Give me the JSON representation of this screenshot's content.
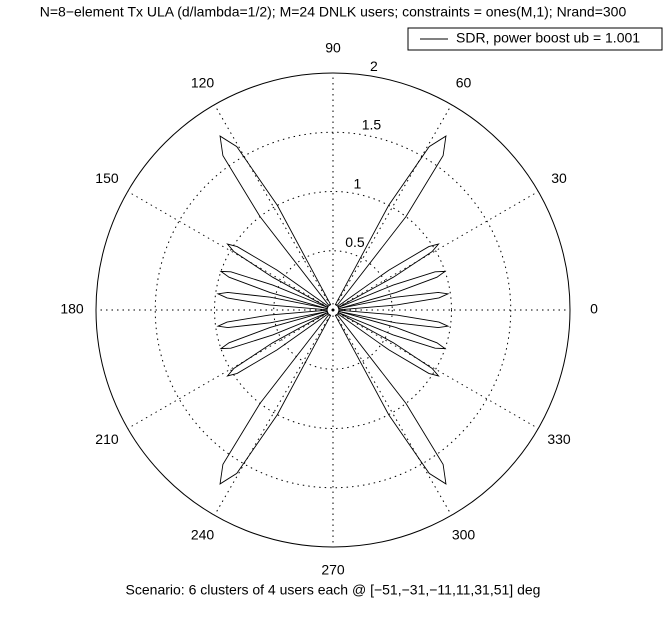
{
  "chart_data": {
    "type": "polar",
    "title": "N=8−element Tx ULA (d/lambda=1/2); M=24 DNLK users; constraints = ones(M,1); Nrand=300",
    "xlabel": "Scenario: 6 clusters of 4 users each @ [−51,−31,−11,11,31,51] deg",
    "rlim": [
      0,
      2
    ],
    "rticks": [
      0.5,
      1,
      1.5,
      2
    ],
    "thetaticks": [
      0,
      30,
      60,
      90,
      120,
      150,
      180,
      210,
      240,
      270,
      300,
      330
    ],
    "legend": "upper right",
    "series": [
      {
        "name": "SDR, power boost ub = 1.001",
        "color": "#000000",
        "theta": [
          2,
          4.5,
          6.5,
          8,
          9.5,
          11.5,
          14,
          null,
          13,
          15.5,
          17.5,
          19,
          20.5,
          22.5,
          25,
          null,
          26,
          28.5,
          30.5,
          32,
          33.5,
          35.5,
          38,
          null,
          48,
          52,
          54.5,
          57,
          59.5,
          62,
          66,
          null,
          114,
          118,
          120.5,
          123,
          125.5,
          128,
          132,
          null,
          142,
          144.5,
          146.5,
          148,
          149.5,
          151.5,
          154,
          null,
          155,
          157.5,
          159.5,
          161,
          162.5,
          164.5,
          167,
          null,
          166,
          168.5,
          170.5,
          172,
          173.5,
          175.5,
          178,
          null,
          182,
          184.5,
          186.5,
          188,
          189.5,
          191.5,
          194,
          null,
          193,
          195.5,
          197.5,
          199,
          200.5,
          202.5,
          205,
          null,
          206,
          208.5,
          210.5,
          212,
          213.5,
          215.5,
          218,
          null,
          228,
          232,
          234.5,
          237,
          239.5,
          242,
          246,
          null,
          294,
          298,
          300.5,
          303,
          305.5,
          308,
          312,
          null,
          322,
          324.5,
          326.5,
          328,
          329.5,
          331.5,
          334,
          null,
          335,
          337.5,
          339.5,
          341,
          342.5,
          344.5,
          347,
          null,
          346,
          348.5,
          350.5,
          352,
          353.5,
          355.5,
          358
        ],
        "r": [
          0.05,
          0.54,
          0.9,
          0.98,
          0.9,
          0.54,
          0.05,
          null,
          0.05,
          0.55,
          0.92,
          1,
          0.92,
          0.55,
          0.05,
          null,
          0.05,
          0.58,
          0.97,
          1.05,
          0.97,
          0.58,
          0.05,
          null,
          0.05,
          1.0,
          1.6,
          1.75,
          1.6,
          1.0,
          0.05,
          null,
          0.05,
          1.0,
          1.6,
          1.75,
          1.6,
          1.0,
          0.05,
          null,
          0.05,
          0.58,
          0.97,
          1.05,
          0.97,
          0.58,
          0.05,
          null,
          0.05,
          0.55,
          0.92,
          1,
          0.92,
          0.55,
          0.05,
          null,
          0.05,
          0.54,
          0.9,
          0.98,
          0.9,
          0.54,
          0.05,
          null,
          0.05,
          0.54,
          0.9,
          0.98,
          0.9,
          0.54,
          0.05,
          null,
          0.05,
          0.55,
          0.92,
          1,
          0.92,
          0.55,
          0.05,
          null,
          0.05,
          0.58,
          0.97,
          1.05,
          0.97,
          0.58,
          0.05,
          null,
          0.05,
          1.0,
          1.6,
          1.75,
          1.6,
          1.0,
          0.05,
          null,
          0.05,
          1.0,
          1.6,
          1.75,
          1.6,
          1.0,
          0.05,
          null,
          0.05,
          0.58,
          0.97,
          1.05,
          0.97,
          0.58,
          0.05,
          null,
          0.05,
          0.55,
          0.92,
          1,
          0.92,
          0.55,
          0.05,
          null,
          0.05,
          0.54,
          0.9,
          0.98,
          0.9,
          0.54,
          0.05
        ]
      }
    ]
  }
}
